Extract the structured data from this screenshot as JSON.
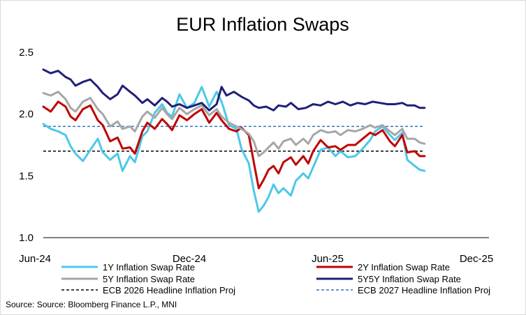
{
  "chart_data": {
    "type": "line",
    "title": "EUR Inflation Swaps",
    "xlabel": "",
    "ylabel": "",
    "ylim": [
      1.0,
      2.5
    ],
    "y_ticks": [
      "1.0",
      "1.5",
      "2.0",
      "2.5"
    ],
    "x_ticks": [
      "Jun-24",
      "Dec-24",
      "Jun-25",
      "Dec-25"
    ],
    "x_domain_months": [
      0,
      18
    ],
    "source": "Source: Source: Bloomberg Finance L.P., MNI",
    "series": [
      {
        "name": "1Y Inflation Swap Rate",
        "color": "#4cc8e8",
        "style": "solid",
        "points": [
          [
            0,
            1.92
          ],
          [
            0.3,
            1.88
          ],
          [
            0.6,
            1.86
          ],
          [
            0.9,
            1.83
          ],
          [
            1.1,
            1.74
          ],
          [
            1.3,
            1.68
          ],
          [
            1.6,
            1.62
          ],
          [
            1.9,
            1.71
          ],
          [
            2.2,
            1.8
          ],
          [
            2.4,
            1.69
          ],
          [
            2.7,
            1.63
          ],
          [
            3.0,
            1.68
          ],
          [
            3.2,
            1.54
          ],
          [
            3.5,
            1.66
          ],
          [
            3.7,
            1.61
          ],
          [
            4.0,
            1.82
          ],
          [
            4.2,
            1.86
          ],
          [
            4.5,
            2.01
          ],
          [
            4.8,
            2.08
          ],
          [
            5.0,
            2.01
          ],
          [
            5.2,
            1.98
          ],
          [
            5.5,
            2.16
          ],
          [
            5.8,
            2.05
          ],
          [
            6.1,
            2.09
          ],
          [
            6.4,
            2.22
          ],
          [
            6.7,
            2.06
          ],
          [
            7.0,
            2.18
          ],
          [
            7.2,
            2.1
          ],
          [
            7.5,
            1.91
          ],
          [
            7.8,
            1.88
          ],
          [
            8.0,
            1.72
          ],
          [
            8.3,
            1.6
          ],
          [
            8.5,
            1.38
          ],
          [
            8.7,
            1.21
          ],
          [
            8.9,
            1.26
          ],
          [
            9.1,
            1.33
          ],
          [
            9.3,
            1.43
          ],
          [
            9.5,
            1.36
          ],
          [
            9.7,
            1.4
          ],
          [
            10.0,
            1.34
          ],
          [
            10.2,
            1.46
          ],
          [
            10.5,
            1.52
          ],
          [
            10.7,
            1.48
          ],
          [
            10.9,
            1.57
          ],
          [
            11.2,
            1.71
          ],
          [
            11.5,
            1.73
          ],
          [
            11.8,
            1.66
          ],
          [
            12.0,
            1.7
          ],
          [
            12.3,
            1.65
          ],
          [
            12.6,
            1.66
          ],
          [
            12.9,
            1.72
          ],
          [
            13.2,
            1.79
          ],
          [
            13.4,
            1.86
          ],
          [
            13.7,
            1.9
          ],
          [
            14.0,
            1.83
          ],
          [
            14.2,
            1.79
          ],
          [
            14.5,
            1.85
          ],
          [
            14.7,
            1.63
          ],
          [
            15.0,
            1.58
          ],
          [
            15.2,
            1.55
          ],
          [
            15.4,
            1.54
          ]
        ]
      },
      {
        "name": "2Y Inflation Swap Rate",
        "color": "#c00000",
        "style": "solid",
        "points": [
          [
            0,
            2.06
          ],
          [
            0.3,
            2.02
          ],
          [
            0.6,
            2.1
          ],
          [
            0.9,
            2.06
          ],
          [
            1.1,
            1.98
          ],
          [
            1.3,
            1.95
          ],
          [
            1.6,
            2.04
          ],
          [
            1.9,
            2.07
          ],
          [
            2.2,
            1.95
          ],
          [
            2.4,
            1.91
          ],
          [
            2.7,
            1.78
          ],
          [
            3.0,
            1.81
          ],
          [
            3.2,
            1.72
          ],
          [
            3.5,
            1.73
          ],
          [
            3.7,
            1.68
          ],
          [
            4.0,
            1.86
          ],
          [
            4.2,
            1.93
          ],
          [
            4.5,
            1.88
          ],
          [
            4.8,
            1.96
          ],
          [
            5.0,
            1.92
          ],
          [
            5.2,
            1.87
          ],
          [
            5.5,
            1.99
          ],
          [
            5.8,
            1.95
          ],
          [
            6.1,
            2.0
          ],
          [
            6.4,
            2.04
          ],
          [
            6.7,
            1.93
          ],
          [
            7.0,
            2.01
          ],
          [
            7.2,
            1.95
          ],
          [
            7.5,
            1.88
          ],
          [
            7.8,
            1.86
          ],
          [
            8.0,
            1.89
          ],
          [
            8.3,
            1.83
          ],
          [
            8.5,
            1.61
          ],
          [
            8.7,
            1.4
          ],
          [
            8.9,
            1.47
          ],
          [
            9.1,
            1.55
          ],
          [
            9.3,
            1.58
          ],
          [
            9.5,
            1.52
          ],
          [
            9.7,
            1.61
          ],
          [
            10.0,
            1.65
          ],
          [
            10.2,
            1.59
          ],
          [
            10.5,
            1.66
          ],
          [
            10.7,
            1.6
          ],
          [
            10.9,
            1.7
          ],
          [
            11.2,
            1.79
          ],
          [
            11.5,
            1.73
          ],
          [
            11.8,
            1.74
          ],
          [
            12.0,
            1.71
          ],
          [
            12.3,
            1.75
          ],
          [
            12.6,
            1.75
          ],
          [
            12.9,
            1.8
          ],
          [
            13.2,
            1.85
          ],
          [
            13.4,
            1.83
          ],
          [
            13.7,
            1.87
          ],
          [
            14.0,
            1.78
          ],
          [
            14.2,
            1.74
          ],
          [
            14.5,
            1.83
          ],
          [
            14.7,
            1.69
          ],
          [
            15.0,
            1.7
          ],
          [
            15.2,
            1.66
          ],
          [
            15.4,
            1.66
          ]
        ]
      },
      {
        "name": "5Y Inflation Swap Rate",
        "color": "#a6a6a6",
        "style": "solid",
        "points": [
          [
            0,
            2.17
          ],
          [
            0.3,
            2.15
          ],
          [
            0.6,
            2.18
          ],
          [
            0.9,
            2.12
          ],
          [
            1.1,
            2.05
          ],
          [
            1.3,
            2.02
          ],
          [
            1.6,
            2.1
          ],
          [
            1.9,
            2.13
          ],
          [
            2.2,
            2.04
          ],
          [
            2.4,
            2.0
          ],
          [
            2.7,
            1.9
          ],
          [
            3.0,
            1.94
          ],
          [
            3.2,
            1.88
          ],
          [
            3.5,
            1.9
          ],
          [
            3.7,
            1.86
          ],
          [
            4.0,
            1.98
          ],
          [
            4.2,
            2.02
          ],
          [
            4.5,
            1.97
          ],
          [
            4.8,
            2.05
          ],
          [
            5.0,
            2.0
          ],
          [
            5.2,
            1.96
          ],
          [
            5.5,
            2.05
          ],
          [
            5.8,
            2.0
          ],
          [
            6.1,
            2.04
          ],
          [
            6.4,
            2.07
          ],
          [
            6.7,
            1.99
          ],
          [
            7.0,
            2.04
          ],
          [
            7.2,
            1.98
          ],
          [
            7.5,
            1.93
          ],
          [
            7.8,
            1.9
          ],
          [
            8.0,
            1.88
          ],
          [
            8.3,
            1.84
          ],
          [
            8.5,
            1.78
          ],
          [
            8.7,
            1.66
          ],
          [
            8.9,
            1.69
          ],
          [
            9.1,
            1.73
          ],
          [
            9.3,
            1.77
          ],
          [
            9.5,
            1.72
          ],
          [
            9.7,
            1.78
          ],
          [
            10.0,
            1.8
          ],
          [
            10.2,
            1.75
          ],
          [
            10.5,
            1.8
          ],
          [
            10.7,
            1.76
          ],
          [
            10.9,
            1.83
          ],
          [
            11.2,
            1.87
          ],
          [
            11.5,
            1.85
          ],
          [
            11.8,
            1.86
          ],
          [
            12.0,
            1.83
          ],
          [
            12.3,
            1.87
          ],
          [
            12.6,
            1.86
          ],
          [
            12.9,
            1.88
          ],
          [
            13.2,
            1.91
          ],
          [
            13.4,
            1.89
          ],
          [
            13.7,
            1.91
          ],
          [
            14.0,
            1.86
          ],
          [
            14.2,
            1.83
          ],
          [
            14.5,
            1.88
          ],
          [
            14.7,
            1.8
          ],
          [
            15.0,
            1.8
          ],
          [
            15.2,
            1.77
          ],
          [
            15.4,
            1.76
          ]
        ]
      },
      {
        "name": "5Y5Y Inflation Swap Rate",
        "color": "#1f1f7a",
        "style": "solid",
        "points": [
          [
            0,
            2.36
          ],
          [
            0.3,
            2.33
          ],
          [
            0.6,
            2.35
          ],
          [
            0.9,
            2.3
          ],
          [
            1.1,
            2.28
          ],
          [
            1.3,
            2.23
          ],
          [
            1.6,
            2.26
          ],
          [
            1.9,
            2.28
          ],
          [
            2.2,
            2.22
          ],
          [
            2.4,
            2.17
          ],
          [
            2.7,
            2.12
          ],
          [
            3.0,
            2.16
          ],
          [
            3.2,
            2.23
          ],
          [
            3.5,
            2.18
          ],
          [
            3.7,
            2.15
          ],
          [
            4.0,
            2.09
          ],
          [
            4.2,
            2.12
          ],
          [
            4.5,
            2.07
          ],
          [
            4.8,
            2.13
          ],
          [
            5.0,
            2.1
          ],
          [
            5.2,
            2.06
          ],
          [
            5.5,
            2.08
          ],
          [
            5.8,
            2.05
          ],
          [
            6.1,
            2.07
          ],
          [
            6.4,
            2.09
          ],
          [
            6.7,
            2.03
          ],
          [
            7.0,
            2.08
          ],
          [
            7.2,
            2.22
          ],
          [
            7.4,
            2.15
          ],
          [
            7.7,
            2.18
          ],
          [
            8.0,
            2.14
          ],
          [
            8.3,
            2.11
          ],
          [
            8.5,
            2.07
          ],
          [
            8.7,
            2.05
          ],
          [
            9.0,
            2.06
          ],
          [
            9.3,
            2.03
          ],
          [
            9.5,
            2.07
          ],
          [
            9.8,
            2.06
          ],
          [
            10.0,
            2.09
          ],
          [
            10.3,
            2.04
          ],
          [
            10.6,
            2.05
          ],
          [
            10.9,
            2.08
          ],
          [
            11.2,
            2.07
          ],
          [
            11.5,
            2.1
          ],
          [
            11.8,
            2.08
          ],
          [
            12.1,
            2.1
          ],
          [
            12.4,
            2.07
          ],
          [
            12.7,
            2.09
          ],
          [
            13.0,
            2.08
          ],
          [
            13.3,
            2.1
          ],
          [
            13.6,
            2.09
          ],
          [
            13.9,
            2.08
          ],
          [
            14.2,
            2.08
          ],
          [
            14.5,
            2.09
          ],
          [
            14.7,
            2.07
          ],
          [
            15.0,
            2.07
          ],
          [
            15.2,
            2.05
          ],
          [
            15.4,
            2.05
          ]
        ]
      },
      {
        "name": "ECB 2026 Headline Inflation Proj",
        "color": "#000000",
        "style": "dashed",
        "points": [
          [
            0,
            1.7
          ],
          [
            15.4,
            1.7
          ]
        ]
      },
      {
        "name": "ECB 2027 Headline Inflation Proj",
        "color": "#2e75b6",
        "style": "dashed",
        "points": [
          [
            0,
            1.9
          ],
          [
            15.4,
            1.9
          ]
        ]
      }
    ]
  }
}
